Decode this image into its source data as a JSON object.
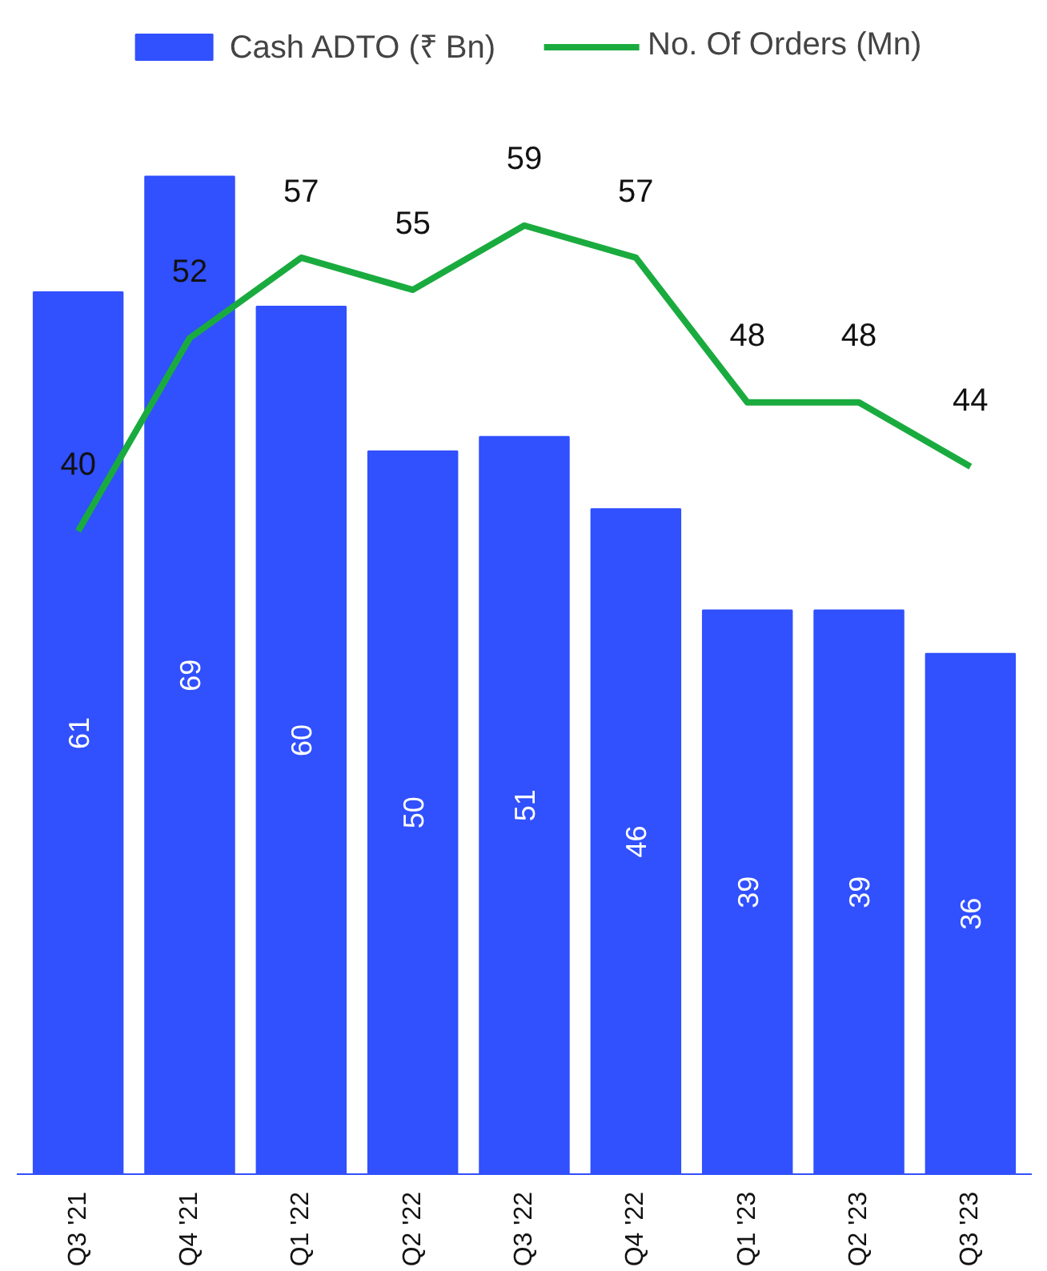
{
  "chart_data": {
    "type": "bar",
    "categories": [
      "Q3 '21",
      "Q4 '21",
      "Q1 '22",
      "Q2 '22",
      "Q3 '22",
      "Q4 '22",
      "Q1 '23",
      "Q2 '23",
      "Q3 '23"
    ],
    "series": [
      {
        "name": "Cash ADTO (₹ Bn)",
        "color": "#3150fe",
        "values": [
          61,
          69,
          60,
          50,
          51,
          46,
          39,
          39,
          36
        ]
      },
      {
        "name": "No. Of Orders (Mn)",
        "type": "line",
        "axis": "y2",
        "color": "#1aab3f",
        "values": [
          40,
          52,
          57,
          55,
          59,
          57,
          48,
          48,
          44
        ]
      }
    ],
    "data_labels": true,
    "legend": "top",
    "grid": false,
    "tick_labels": "x",
    "marker": "none",
    "line_style": "solid"
  }
}
